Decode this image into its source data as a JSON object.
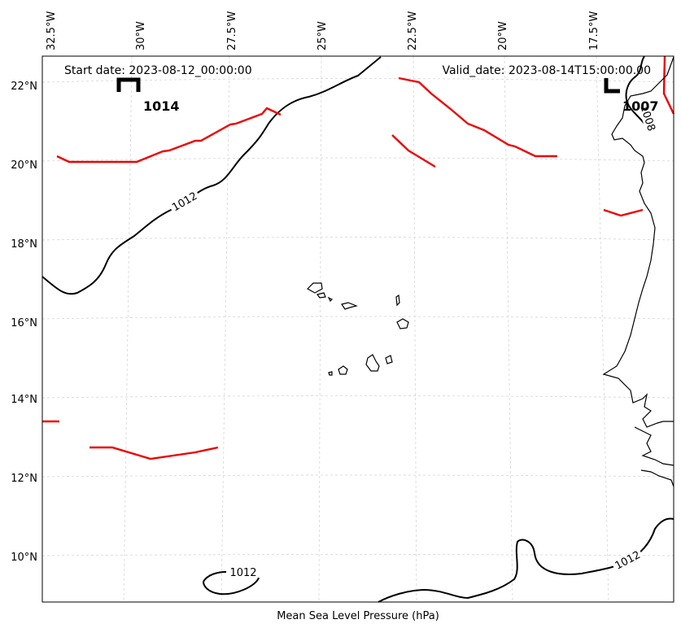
{
  "map": {
    "start_label": "Start date: 2023-08-12_00:00:00",
    "valid_label": "Valid_date: 2023-08-14T15:00:00.00",
    "caption": "Mean Sea Level Pressure (hPa)",
    "pressure_centers": [
      {
        "type": "H",
        "value": "1014"
      },
      {
        "type": "L",
        "value": "1007"
      }
    ],
    "contour_labels": [
      "1012",
      "1012",
      "1012",
      "1008"
    ],
    "lon_labels": [
      "32.5°W",
      "30°W",
      "27.5°W",
      "25°W",
      "22.5°W",
      "20°W",
      "17.5°W"
    ],
    "lat_labels": [
      "22°N",
      "20°N",
      "18°N",
      "16°N",
      "14°N",
      "12°N",
      "10°N"
    ],
    "colors": {
      "isobar": "#000000",
      "front": "#ee0000",
      "grid": "#cccccc",
      "coast": "#000000"
    }
  }
}
